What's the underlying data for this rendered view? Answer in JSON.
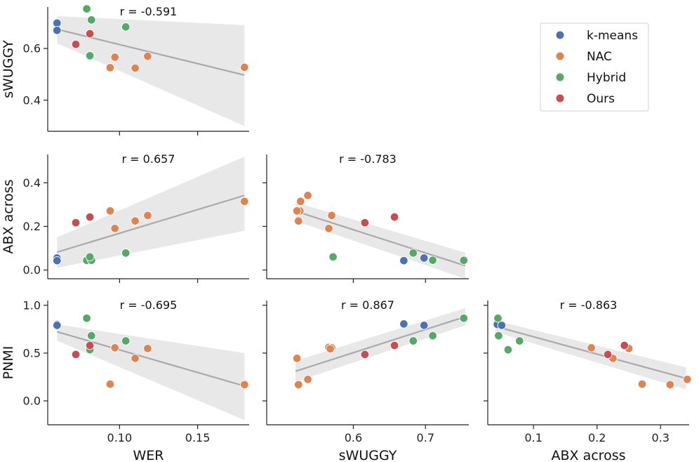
{
  "colors": {
    "k-means": "#4c72b0",
    "NAC": "#dd8452",
    "Hybrid": "#55a868",
    "Ours": "#c44e52",
    "regression_line": "#a9a9a9",
    "confidence_band": "#e8e8e8"
  },
  "legend": {
    "position": "top-right",
    "entries": [
      "k-means",
      "NAC",
      "Hybrid",
      "Ours"
    ]
  },
  "chart_data": [
    {
      "id": "wer-swuggy",
      "type": "scatter",
      "r_label": "r = -0.591",
      "xlabel": "",
      "ylabel": "sWUGGY",
      "xlim": [
        0.054,
        0.183
      ],
      "ylim": [
        0.28,
        0.76
      ],
      "xticks": [
        {
          "v": 0.1,
          "label": ""
        },
        {
          "v": 0.15,
          "label": ""
        }
      ],
      "yticks": [
        {
          "v": 0.4,
          "label": "0.4"
        },
        {
          "v": 0.6,
          "label": "0.6"
        }
      ],
      "fit": {
        "x0": 0.06,
        "x1": 0.18,
        "y0": 0.674,
        "y1": 0.497,
        "band_lo": [
          0.62,
          0.3
        ],
        "band_hi": [
          0.725,
          0.69
        ]
      },
      "series": [
        {
          "name": "k-means",
          "x": [
            0.06,
            0.06
          ],
          "y": [
            0.698,
            0.67
          ]
        },
        {
          "name": "NAC",
          "x": [
            0.094,
            0.097,
            0.11,
            0.118,
            0.18
          ],
          "y": [
            0.526,
            0.566,
            0.524,
            0.57,
            0.527
          ]
        },
        {
          "name": "Hybrid",
          "x": [
            0.079,
            0.082,
            0.081,
            0.104
          ],
          "y": [
            0.753,
            0.71,
            0.572,
            0.683
          ]
        },
        {
          "name": "Ours",
          "x": [
            0.072,
            0.081
          ],
          "y": [
            0.616,
            0.657
          ]
        }
      ]
    },
    {
      "id": "wer-abx",
      "type": "scatter",
      "r_label": "r = 0.657",
      "xlabel": "",
      "ylabel": "ABX across",
      "xlim": [
        0.054,
        0.183
      ],
      "ylim": [
        -0.04,
        0.53
      ],
      "xticks": [
        {
          "v": 0.1,
          "label": ""
        },
        {
          "v": 0.15,
          "label": ""
        }
      ],
      "yticks": [
        {
          "v": 0.0,
          "label": "0.0"
        },
        {
          "v": 0.2,
          "label": "0.2"
        },
        {
          "v": 0.4,
          "label": "0.4"
        }
      ],
      "fit": {
        "x0": 0.06,
        "x1": 0.18,
        "y0": 0.082,
        "y1": 0.342,
        "band_lo": [
          0.01,
          0.18
        ],
        "band_hi": [
          0.15,
          0.52
        ]
      },
      "series": [
        {
          "name": "k-means",
          "x": [
            0.06,
            0.06
          ],
          "y": [
            0.055,
            0.043
          ]
        },
        {
          "name": "NAC",
          "x": [
            0.094,
            0.097,
            0.11,
            0.118,
            0.18
          ],
          "y": [
            0.271,
            0.191,
            0.225,
            0.25,
            0.315
          ]
        },
        {
          "name": "Hybrid",
          "x": [
            0.079,
            0.082,
            0.081,
            0.104
          ],
          "y": [
            0.044,
            0.045,
            0.06,
            0.078
          ]
        },
        {
          "name": "Ours",
          "x": [
            0.072,
            0.081
          ],
          "y": [
            0.217,
            0.243
          ]
        }
      ]
    },
    {
      "id": "swuggy-abx",
      "type": "scatter",
      "r_label": "r = -0.783",
      "xlabel": "",
      "ylabel": "",
      "xlim": [
        0.48,
        0.76
      ],
      "ylim": [
        -0.04,
        0.53
      ],
      "xticks": [
        {
          "v": 0.6,
          "label": ""
        },
        {
          "v": 0.7,
          "label": ""
        }
      ],
      "yticks": [
        {
          "v": 0.0,
          "label": ""
        },
        {
          "v": 0.2,
          "label": ""
        },
        {
          "v": 0.4,
          "label": ""
        }
      ],
      "fit": {
        "x0": 0.52,
        "x1": 0.755,
        "y0": 0.27,
        "y1": 0.02,
        "band_lo": [
          0.225,
          -0.04
        ],
        "band_hi": [
          0.31,
          0.08
        ]
      },
      "series": [
        {
          "name": "k-means",
          "x": [
            0.698,
            0.67
          ],
          "y": [
            0.055,
            0.043
          ]
        },
        {
          "name": "NAC",
          "x": [
            0.526,
            0.566,
            0.524,
            0.57,
            0.527,
            0.537,
            0.522
          ],
          "y": [
            0.271,
            0.191,
            0.225,
            0.25,
            0.315,
            0.342,
            0.271
          ]
        },
        {
          "name": "Hybrid",
          "x": [
            0.753,
            0.71,
            0.572,
            0.683
          ],
          "y": [
            0.044,
            0.045,
            0.06,
            0.078
          ]
        },
        {
          "name": "Ours",
          "x": [
            0.616,
            0.657
          ],
          "y": [
            0.217,
            0.243
          ]
        }
      ]
    },
    {
      "id": "wer-pnmi",
      "type": "scatter",
      "r_label": "r = -0.695",
      "xlabel": "WER",
      "ylabel": "PNMI",
      "xlim": [
        0.054,
        0.183
      ],
      "ylim": [
        -0.25,
        1.05
      ],
      "xticks": [
        {
          "v": 0.1,
          "label": "0.10"
        },
        {
          "v": 0.15,
          "label": "0.15"
        }
      ],
      "yticks": [
        {
          "v": 0.0,
          "label": "0.0"
        },
        {
          "v": 0.5,
          "label": "0.5"
        },
        {
          "v": 1.0,
          "label": "1.0"
        }
      ],
      "fit": {
        "x0": 0.06,
        "x1": 0.18,
        "y0": 0.723,
        "y1": 0.155,
        "band_lo": [
          0.63,
          -0.2
        ],
        "band_hi": [
          0.8,
          0.5
        ]
      },
      "series": [
        {
          "name": "k-means",
          "x": [
            0.06,
            0.06
          ],
          "y": [
            0.8,
            0.79
          ]
        },
        {
          "name": "NAC",
          "x": [
            0.094,
            0.097,
            0.11,
            0.118,
            0.18
          ],
          "y": [
            0.175,
            0.555,
            0.445,
            0.548,
            0.17
          ]
        },
        {
          "name": "Hybrid",
          "x": [
            0.079,
            0.082,
            0.081,
            0.104
          ],
          "y": [
            0.865,
            0.682,
            0.535,
            0.628
          ]
        },
        {
          "name": "Ours",
          "x": [
            0.072,
            0.081
          ],
          "y": [
            0.485,
            0.58
          ]
        }
      ]
    },
    {
      "id": "swuggy-pnmi",
      "type": "scatter",
      "r_label": "r = 0.867",
      "xlabel": "sWUGGY",
      "ylabel": "",
      "xlim": [
        0.48,
        0.76
      ],
      "ylim": [
        -0.25,
        1.05
      ],
      "xticks": [
        {
          "v": 0.6,
          "label": "0.6"
        },
        {
          "v": 0.7,
          "label": "0.7"
        }
      ],
      "yticks": [
        {
          "v": 0.0,
          "label": ""
        },
        {
          "v": 0.5,
          "label": ""
        },
        {
          "v": 1.0,
          "label": ""
        }
      ],
      "fit": {
        "x0": 0.52,
        "x1": 0.755,
        "y0": 0.31,
        "y1": 0.88,
        "band_lo": [
          0.2,
          0.79
        ],
        "band_hi": [
          0.42,
          0.97
        ]
      },
      "series": [
        {
          "name": "k-means",
          "x": [
            0.67,
            0.698
          ],
          "y": [
            0.805,
            0.79
          ]
        },
        {
          "name": "NAC",
          "x": [
            0.522,
            0.524,
            0.537,
            0.566,
            0.57,
            0.568
          ],
          "y": [
            0.445,
            0.17,
            0.225,
            0.56,
            0.555,
            0.545
          ]
        },
        {
          "name": "Hybrid",
          "x": [
            0.753,
            0.71,
            0.683
          ],
          "y": [
            0.865,
            0.682,
            0.628
          ]
        },
        {
          "name": "Ours",
          "x": [
            0.616,
            0.657
          ],
          "y": [
            0.485,
            0.58
          ]
        }
      ]
    },
    {
      "id": "abx-pnmi",
      "type": "scatter",
      "r_label": "r = -0.863",
      "xlabel": "ABX across",
      "ylabel": "",
      "xlim": [
        0.028,
        0.345
      ],
      "ylim": [
        -0.25,
        1.05
      ],
      "xticks": [
        {
          "v": 0.1,
          "label": "0.1"
        },
        {
          "v": 0.2,
          "label": "0.2"
        },
        {
          "v": 0.3,
          "label": "0.3"
        }
      ],
      "yticks": [
        {
          "v": 0.0,
          "label": ""
        },
        {
          "v": 0.5,
          "label": ""
        },
        {
          "v": 1.0,
          "label": ""
        }
      ],
      "fit": {
        "x0": 0.04,
        "x1": 0.34,
        "y0": 0.78,
        "y1": 0.235,
        "band_lo": [
          0.72,
          0.12
        ],
        "band_hi": [
          0.84,
          0.35
        ]
      },
      "series": [
        {
          "name": "k-means",
          "x": [
            0.043,
            0.05
          ],
          "y": [
            0.8,
            0.79
          ]
        },
        {
          "name": "NAC",
          "x": [
            0.191,
            0.225,
            0.25,
            0.271,
            0.315,
            0.342
          ],
          "y": [
            0.555,
            0.445,
            0.548,
            0.175,
            0.17,
            0.225
          ]
        },
        {
          "name": "Hybrid",
          "x": [
            0.044,
            0.045,
            0.06,
            0.078
          ],
          "y": [
            0.865,
            0.682,
            0.535,
            0.628
          ]
        },
        {
          "name": "Ours",
          "x": [
            0.217,
            0.243
          ],
          "y": [
            0.485,
            0.58
          ]
        }
      ]
    }
  ]
}
